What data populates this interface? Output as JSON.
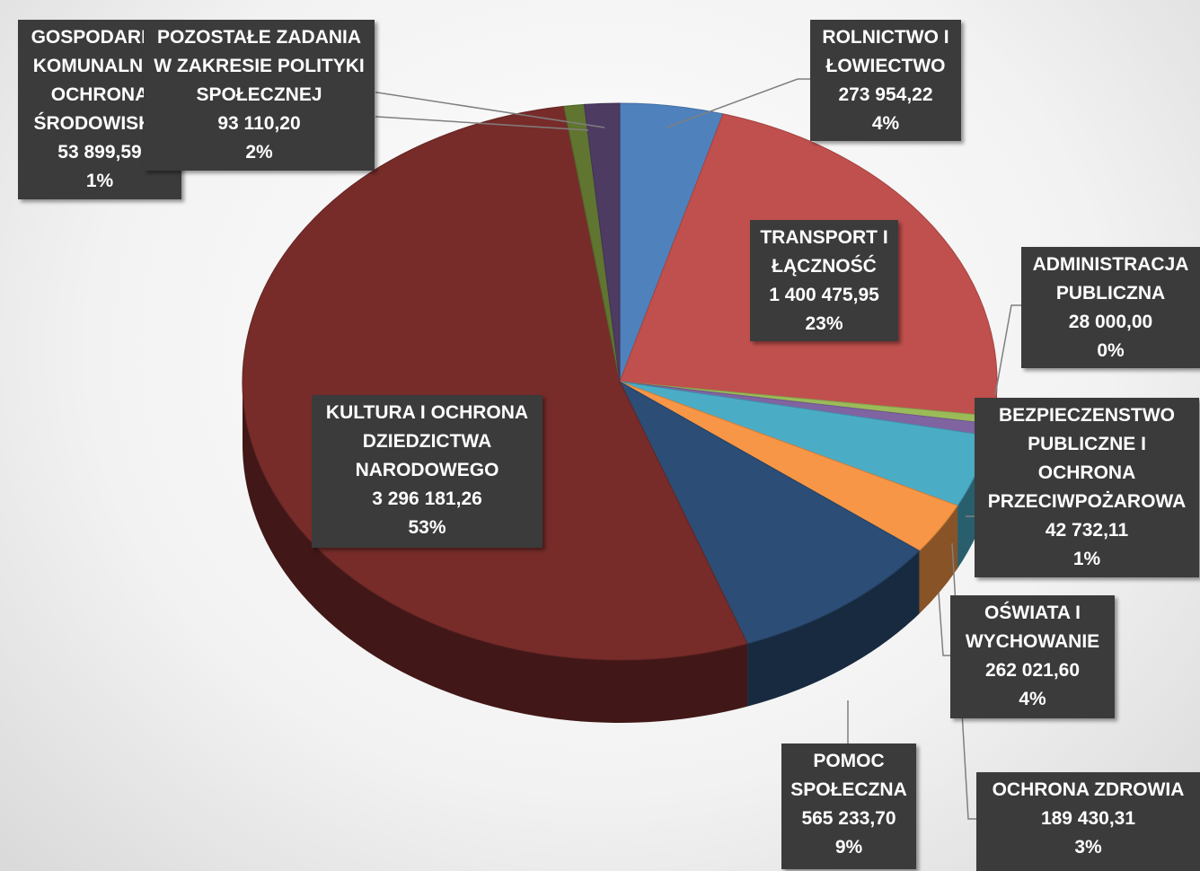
{
  "chart_data": {
    "type": "pie3d",
    "categories": [
      "ROLNICTWO I ŁOWIECTWO",
      "TRANSPORT I ŁĄCZNOŚĆ",
      "ADMINISTRACJA PUBLICZNA",
      "BEZPIECZENSTWO PUBLICZNE I OCHRONA PRZECIWPOŻAROWA",
      "OŚWIATA I WYCHOWANIE",
      "OCHRONA ZDROWIA",
      "POMOC SPOŁECZNA",
      "KULTURA I OCHRONA DZIEDZICTWA NARODOWEGO",
      "GOSPODARKA KOMUNALNA I OCHRONA ŚRODOWISKA",
      "POZOSTAŁE ZADANIA W ZAKRESIE POLITYKI SPOŁECZNEJ"
    ],
    "values": [
      273954.22,
      1400475.95,
      28000.0,
      42732.11,
      262021.6,
      189430.31,
      565233.7,
      3296181.26,
      53899.59,
      93110.2
    ],
    "value_labels": [
      "273 954,22",
      "1 400 475,95",
      "28 000,00",
      "42 732,11",
      "262 021,60",
      "189 430,31",
      "565 233,70",
      "3 296 181,26",
      "53 899,59",
      "93 110,20"
    ],
    "percent_labels": [
      "4%",
      "23%",
      "0%",
      "1%",
      "4%",
      "3%",
      "9%",
      "53%",
      "1%",
      "2%"
    ],
    "colors": [
      "#4f81bd",
      "#c0504d",
      "#9bbb59",
      "#8064a2",
      "#4bacc6",
      "#f79646",
      "#2c4d75",
      "#772c2a",
      "#5f7530",
      "#4d3b62"
    ]
  }
}
